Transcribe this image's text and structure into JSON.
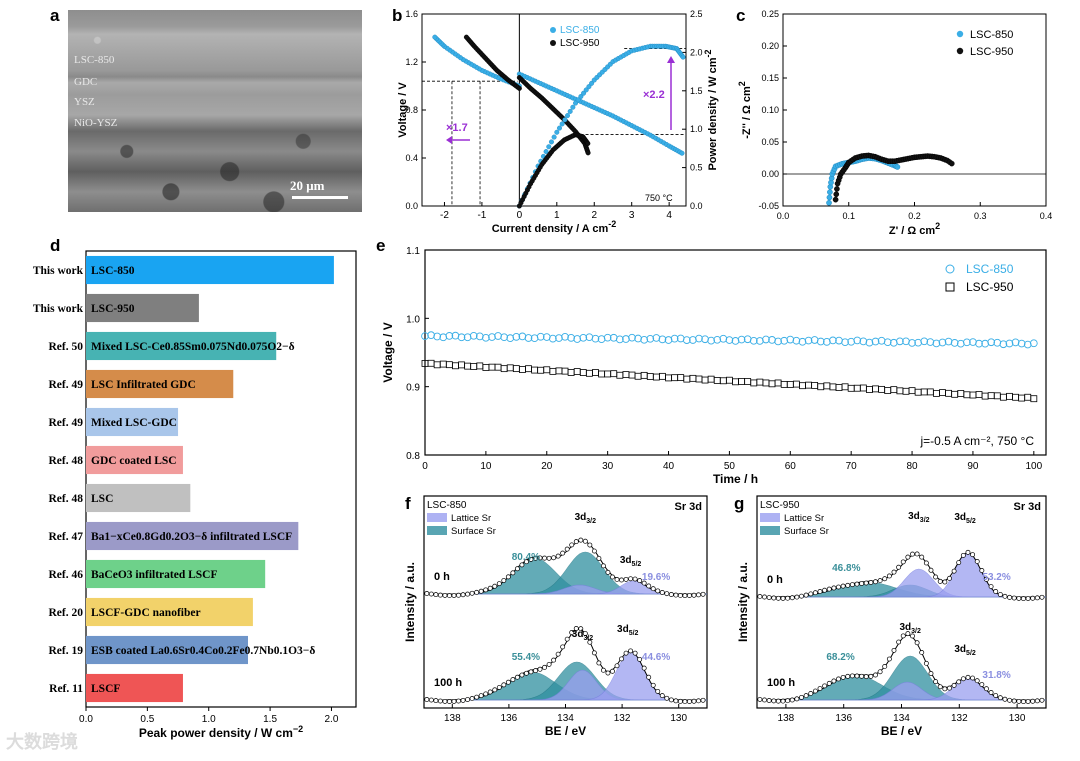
{
  "panels": {
    "a": "a",
    "b": "b",
    "c": "c",
    "d": "d",
    "e": "e",
    "f": "f",
    "g": "g"
  },
  "sem": {
    "labels": [
      "LSC-850",
      "GDC",
      "YSZ",
      "NiO-YSZ"
    ],
    "scale": "20 μm"
  },
  "watermark": "大数跨境",
  "colors": {
    "lsc850": "#3aaee6",
    "lsc950": "#111111",
    "annot": "#9a2fd4",
    "lattice": "#9a9ff0",
    "surface": "#2f8fa0"
  },
  "chart_data": [
    {
      "id": "b",
      "type": "line",
      "xlabel": "Current density / A cm",
      "xlabel_sup": "-2",
      "ylabel": "Voltage / V",
      "ylabel2": "Power density / W cm",
      "ylabel2_sup": "-2",
      "xticks": [
        "-2",
        "-1",
        "0",
        "1",
        "2",
        "3",
        "4"
      ],
      "yticks": [
        "0.0",
        "0.4",
        "0.8",
        "1.2",
        "1.6"
      ],
      "y2ticks": [
        "0.0",
        "0.5",
        "1.0",
        "1.5",
        "2.0",
        "2.5"
      ],
      "xlim": [
        -2.6,
        4.45
      ],
      "ylim": [
        0,
        1.6
      ],
      "y2lim": [
        0,
        2.5
      ],
      "legend": [
        "LSC-850",
        "LSC-950"
      ],
      "note": "750 °C",
      "annot1": "×1.7",
      "annot2": "×2.2",
      "series": [
        {
          "name": "LSC-850 V",
          "x": [
            0,
            0.5,
            1,
            1.5,
            2,
            2.5,
            3,
            3.5,
            4,
            4.4
          ],
          "y": [
            1.1,
            1.03,
            0.96,
            0.89,
            0.82,
            0.75,
            0.67,
            0.59,
            0.5,
            0.43
          ]
        },
        {
          "name": "LSC-950 V",
          "x": [
            0,
            0.3,
            0.6,
            0.9,
            1.2,
            1.5,
            1.75,
            1.85
          ],
          "y": [
            1.07,
            0.98,
            0.9,
            0.81,
            0.72,
            0.62,
            0.52,
            0.43
          ]
        },
        {
          "name": "LSC-850 P",
          "x": [
            0,
            0.5,
            1,
            1.5,
            2,
            2.5,
            3,
            3.5,
            3.9,
            4.2,
            4.4
          ],
          "y": [
            0,
            0.52,
            0.96,
            1.34,
            1.64,
            1.88,
            2.02,
            2.08,
            2.08,
            2.05,
            1.92
          ]
        },
        {
          "name": "LSC-950 P",
          "x": [
            0,
            0.3,
            0.6,
            0.9,
            1.2,
            1.5,
            1.7,
            1.85
          ],
          "y": [
            0,
            0.29,
            0.54,
            0.73,
            0.86,
            0.93,
            0.9,
            0.8
          ]
        },
        {
          "name": "LSC-850 EC",
          "x": [
            0,
            -0.5,
            -1,
            -1.5,
            -2,
            -2.3
          ],
          "y": [
            1.0,
            1.06,
            1.13,
            1.22,
            1.33,
            1.42
          ]
        },
        {
          "name": "LSC-950 EC",
          "x": [
            0,
            -0.3,
            -0.6,
            -0.9,
            -1.2,
            -1.45
          ],
          "y": [
            0.98,
            1.05,
            1.13,
            1.23,
            1.33,
            1.42
          ]
        }
      ]
    },
    {
      "id": "c",
      "type": "scatter",
      "xlabel": "Z' / Ω  cm",
      "xlabel_sup": "2",
      "ylabel": "-Z'' / Ω  cm",
      "ylabel_sup": "2",
      "xticks": [
        "0.0",
        "0.1",
        "0.2",
        "0.3",
        "0.4"
      ],
      "yticks": [
        "-0.05",
        "0.00",
        "0.05",
        "0.10",
        "0.15",
        "0.20",
        "0.25"
      ],
      "xlim": [
        0,
        0.4
      ],
      "ylim": [
        -0.05,
        0.25
      ],
      "legend": [
        "LSC-850",
        "LSC-950"
      ],
      "series": [
        {
          "name": "LSC-850",
          "x": [
            0.07,
            0.072,
            0.075,
            0.08,
            0.09,
            0.1,
            0.11,
            0.12,
            0.13,
            0.14,
            0.15,
            0.16,
            0.17,
            0.176
          ],
          "y": [
            -0.045,
            -0.02,
            0.0,
            0.012,
            0.016,
            0.018,
            0.02,
            0.023,
            0.025,
            0.024,
            0.021,
            0.017,
            0.013,
            0.01
          ]
        },
        {
          "name": "LSC-950",
          "x": [
            0.08,
            0.083,
            0.088,
            0.095,
            0.1,
            0.11,
            0.12,
            0.13,
            0.14,
            0.15,
            0.16,
            0.17,
            0.18,
            0.19,
            0.2,
            0.21,
            0.22,
            0.23,
            0.24,
            0.25,
            0.26
          ],
          "y": [
            -0.04,
            -0.015,
            0.0,
            0.01,
            0.018,
            0.025,
            0.028,
            0.029,
            0.027,
            0.023,
            0.02,
            0.02,
            0.022,
            0.024,
            0.026,
            0.027,
            0.028,
            0.027,
            0.025,
            0.021,
            0.014
          ]
        }
      ]
    },
    {
      "id": "d",
      "type": "bar",
      "orientation": "horizontal",
      "xlabel": "Peak power density / W cm",
      "xlabel_sup": "−2",
      "xticks": [
        "0.0",
        "0.5",
        "1.0",
        "1.5",
        "2.0"
      ],
      "xlim": [
        0,
        2.2
      ],
      "bars": [
        {
          "ref": "This work",
          "label": "LSC-850",
          "value": 2.02,
          "color": "#19a4f2"
        },
        {
          "ref": "This work",
          "label": "LSC-950",
          "value": 0.92,
          "color": "#7f7f7f"
        },
        {
          "ref": "Ref. 50",
          "label": "Mixed LSC-Ce0.85Sm0.075Nd0.075O2−δ",
          "value": 1.55,
          "color": "#47b3b3"
        },
        {
          "ref": "Ref. 49",
          "label": "LSC Infiltrated GDC",
          "value": 1.2,
          "color": "#d58c4a"
        },
        {
          "ref": "Ref. 49",
          "label": "Mixed LSC-GDC",
          "value": 0.75,
          "color": "#a9c6ea"
        },
        {
          "ref": "Ref. 48",
          "label": "GDC coated LSC",
          "value": 0.79,
          "color": "#f19c9c"
        },
        {
          "ref": "Ref. 48",
          "label": "LSC",
          "value": 0.85,
          "color": "#c0c0c0"
        },
        {
          "ref": "Ref. 47",
          "label": "Ba1−xCe0.8Gd0.2O3−δ infiltrated LSCF",
          "value": 1.73,
          "color": "#9b9ac8"
        },
        {
          "ref": "Ref. 46",
          "label": "BaCeO3 infiltrated LSCF",
          "value": 1.46,
          "color": "#6ed18a"
        },
        {
          "ref": "Ref. 20",
          "label": "LSCF-GDC nanofiber",
          "value": 1.36,
          "color": "#f2d26a"
        },
        {
          "ref": "Ref. 19",
          "label": "ESB coated La0.6Sr0.4Co0.2Fe0.7Nb0.1O3−δ",
          "value": 1.32,
          "color": "#6f95c9"
        },
        {
          "ref": "Ref. 11",
          "label": "LSCF",
          "value": 0.79,
          "color": "#ef5555"
        }
      ]
    },
    {
      "id": "e",
      "type": "scatter",
      "xlabel": "Time / h",
      "ylabel": "Voltage / V",
      "xticks": [
        "0",
        "10",
        "20",
        "30",
        "40",
        "50",
        "60",
        "70",
        "80",
        "90",
        "100"
      ],
      "yticks": [
        "0.8",
        "0.9",
        "1.0",
        "1.1"
      ],
      "xlim": [
        0,
        102
      ],
      "ylim": [
        0.8,
        1.1
      ],
      "legend": [
        "LSC-850",
        "LSC-950"
      ],
      "note": "j=-0.5 A cm⁻², 750 °C",
      "series": [
        {
          "name": "LSC-850",
          "start": 0.974,
          "end": 0.963
        },
        {
          "name": "LSC-950",
          "start": 0.934,
          "end": 0.883
        }
      ]
    },
    {
      "id": "f",
      "type": "area",
      "xlabel": "BE / eV",
      "ylabel": "Intensity / a.u.",
      "xticks": [
        "138",
        "136",
        "134",
        "132",
        "130"
      ],
      "xlim": [
        139,
        129
      ],
      "title": "LSC-850",
      "corner": "Sr 3d",
      "legend": [
        "Lattice Sr",
        "Surface Sr"
      ],
      "top": {
        "time": "0 h",
        "surface": "80.4%",
        "lattice": "19.6%"
      },
      "bottom": {
        "time": "100 h",
        "surface": "55.4%",
        "lattice": "44.6%"
      }
    },
    {
      "id": "g",
      "type": "area",
      "xlabel": "BE / eV",
      "ylabel": "Intensity / a.u.",
      "xticks": [
        "138",
        "136",
        "134",
        "132",
        "130"
      ],
      "xlim": [
        139,
        129
      ],
      "title": "LSC-950",
      "corner": "Sr 3d",
      "legend": [
        "Lattice Sr",
        "Surface Sr"
      ],
      "top": {
        "time": "0 h",
        "surface": "46.8%",
        "lattice": "53.2%"
      },
      "bottom": {
        "time": "100 h",
        "surface": "68.2%",
        "lattice": "31.8%"
      }
    }
  ]
}
